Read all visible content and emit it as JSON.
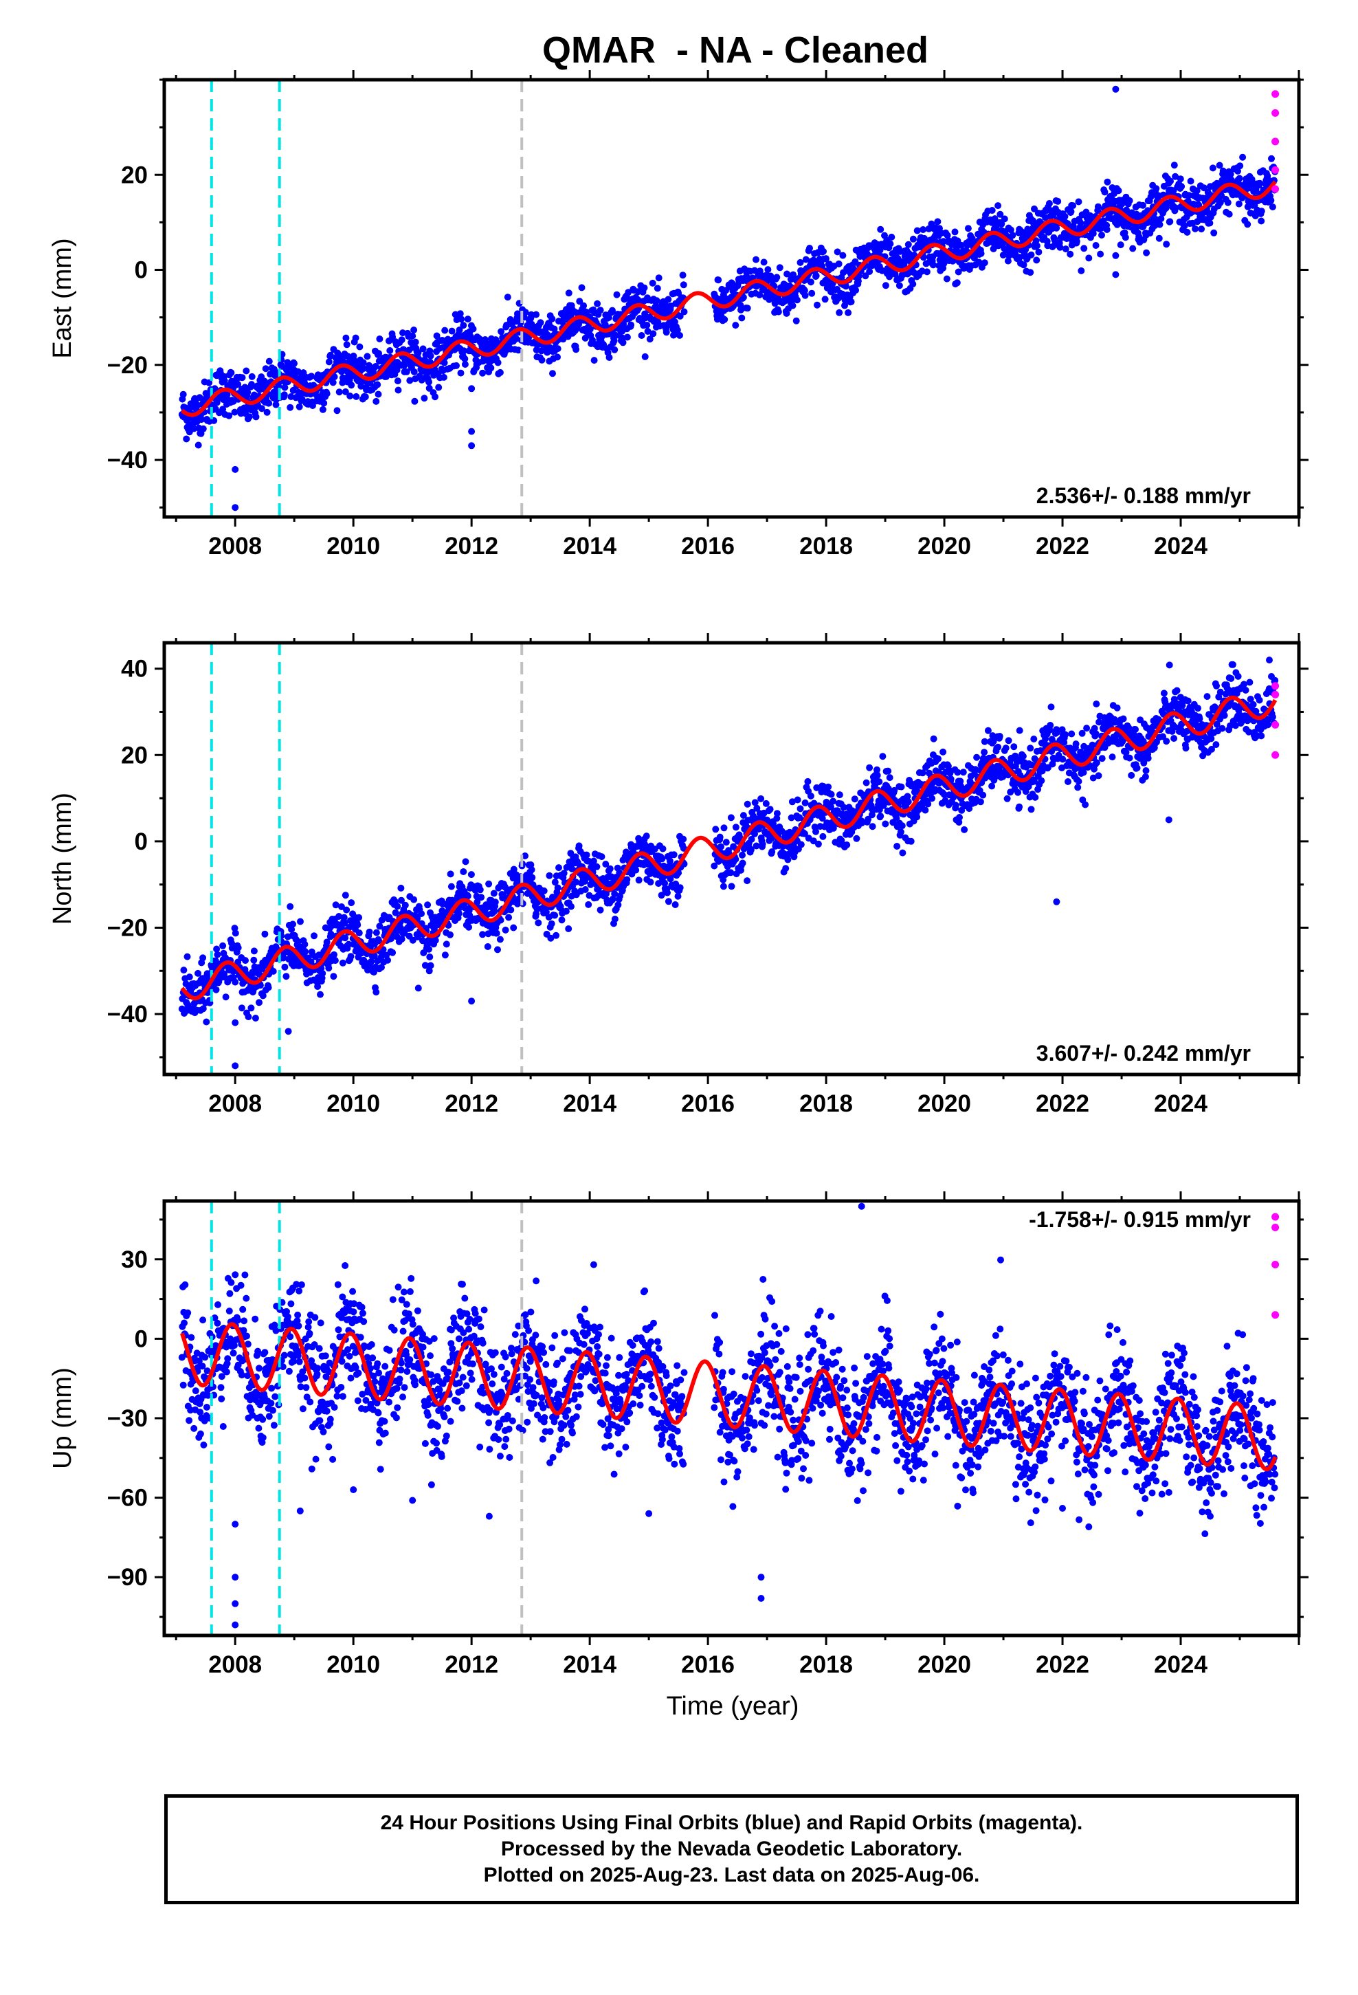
{
  "title": "QMAR  - NA - Cleaned",
  "x_axis_label": "Time (year)",
  "footer": {
    "line1": "24 Hour Positions Using Final Orbits (blue) and Rapid Orbits (magenta).",
    "line2": "Processed by the Nevada Geodetic Laboratory.",
    "line3": "Plotted on 2025-Aug-23. Last data on 2025-Aug-06."
  },
  "colors": {
    "final_orbits": "#0000ff",
    "rapid_orbits": "#ff00ff",
    "model": "#ff0000",
    "equipment_change": "#00e5e5",
    "other_event": "#c0c0c0"
  },
  "chart_data": [
    {
      "type": "scatter",
      "panel": "east",
      "ylabel": "East (mm)",
      "xlim": [
        2006.8,
        2026.0
      ],
      "ylim": [
        -52,
        40
      ],
      "xticks": [
        2008,
        2010,
        2012,
        2014,
        2016,
        2018,
        2020,
        2022,
        2024
      ],
      "yticks": [
        -40,
        -20,
        0,
        20
      ],
      "rate_label": "2.536+/- 0.188 mm/yr",
      "rate_position": "bottom-right",
      "vlines": [
        {
          "x": 2007.6,
          "color": "cyan"
        },
        {
          "x": 2008.75,
          "color": "cyan"
        },
        {
          "x": 2012.85,
          "color": "gray"
        }
      ],
      "model": {
        "start": 2007.1,
        "end": 2025.6,
        "value_at_start": -29.0,
        "rate": 2.536,
        "annual_amplitude": 2.0,
        "phase": 0.55
      },
      "data_gap": [
        2015.6,
        2016.1
      ],
      "scatter_spread": 2.6,
      "outliers": [
        [
          2008.0,
          -42
        ],
        [
          2008.0,
          -50
        ],
        [
          2011.2,
          -27
        ],
        [
          2012.0,
          -25
        ],
        [
          2012.0,
          -34
        ],
        [
          2012.0,
          -37
        ],
        [
          2022.9,
          38
        ],
        [
          2022.9,
          -1
        ],
        [
          2022.9,
          3
        ]
      ],
      "rapid_points": [
        [
          2025.6,
          37
        ],
        [
          2025.6,
          33
        ],
        [
          2025.6,
          27
        ],
        [
          2025.6,
          21
        ],
        [
          2025.6,
          17
        ]
      ]
    },
    {
      "type": "scatter",
      "panel": "north",
      "ylabel": "North (mm)",
      "xlim": [
        2006.8,
        2026.0
      ],
      "ylim": [
        -54,
        46
      ],
      "xticks": [
        2008,
        2010,
        2012,
        2014,
        2016,
        2018,
        2020,
        2022,
        2024
      ],
      "yticks": [
        -40,
        -20,
        0,
        20,
        40
      ],
      "rate_label": "3.607+/- 0.242 mm/yr",
      "rate_position": "bottom-right",
      "vlines": [
        {
          "x": 2007.6,
          "color": "cyan"
        },
        {
          "x": 2008.75,
          "color": "cyan"
        },
        {
          "x": 2012.85,
          "color": "gray"
        }
      ],
      "model": {
        "start": 2007.1,
        "end": 2025.6,
        "value_at_start": -34.0,
        "rate": 3.607,
        "annual_amplitude": 3.2,
        "phase": 0.6
      },
      "data_gap": [
        2015.6,
        2016.1
      ],
      "scatter_spread": 3.2,
      "outliers": [
        [
          2008.0,
          -42
        ],
        [
          2008.0,
          -52
        ],
        [
          2008.9,
          -44
        ],
        [
          2011.1,
          -34
        ],
        [
          2012.0,
          -37
        ],
        [
          2021.9,
          -14
        ],
        [
          2023.8,
          5
        ],
        [
          2025.5,
          42
        ]
      ],
      "rapid_points": [
        [
          2025.6,
          36
        ],
        [
          2025.6,
          34
        ],
        [
          2025.6,
          27
        ],
        [
          2025.6,
          20
        ]
      ]
    },
    {
      "type": "scatter",
      "panel": "up",
      "ylabel": "Up (mm)",
      "xlim": [
        2006.8,
        2026.0
      ],
      "ylim": [
        -112,
        52
      ],
      "xticks": [
        2008,
        2010,
        2012,
        2014,
        2016,
        2018,
        2020,
        2022,
        2024
      ],
      "yticks": [
        -90,
        -60,
        -30,
        0,
        30
      ],
      "rate_label": "-1.758+/- 0.915 mm/yr",
      "rate_position": "top-right",
      "vlines": [
        {
          "x": 2007.6,
          "color": "cyan"
        },
        {
          "x": 2008.75,
          "color": "cyan"
        },
        {
          "x": 2012.85,
          "color": "gray"
        }
      ],
      "model": {
        "start": 2007.1,
        "end": 2025.6,
        "value_at_start": -5.0,
        "rate": -1.758,
        "annual_amplitude": 12.0,
        "phase": 0.7
      },
      "data_gap": [
        2015.6,
        2016.1
      ],
      "scatter_spread": 11,
      "outliers": [
        [
          2008.0,
          -70
        ],
        [
          2008.0,
          -90
        ],
        [
          2008.0,
          -100
        ],
        [
          2008.0,
          -108
        ],
        [
          2009.1,
          -65
        ],
        [
          2010.0,
          -57
        ],
        [
          2011.0,
          -61
        ],
        [
          2012.3,
          -67
        ],
        [
          2015.0,
          -66
        ],
        [
          2016.9,
          -98
        ],
        [
          2016.9,
          -90
        ],
        [
          2019.2,
          -46
        ],
        [
          2022.0,
          -64
        ],
        [
          2023.8,
          -58
        ],
        [
          2025.3,
          -46
        ],
        [
          2018.6,
          50
        ]
      ],
      "rapid_points": [
        [
          2025.6,
          46
        ],
        [
          2025.6,
          42
        ],
        [
          2025.6,
          28
        ],
        [
          2025.6,
          9
        ]
      ]
    }
  ]
}
